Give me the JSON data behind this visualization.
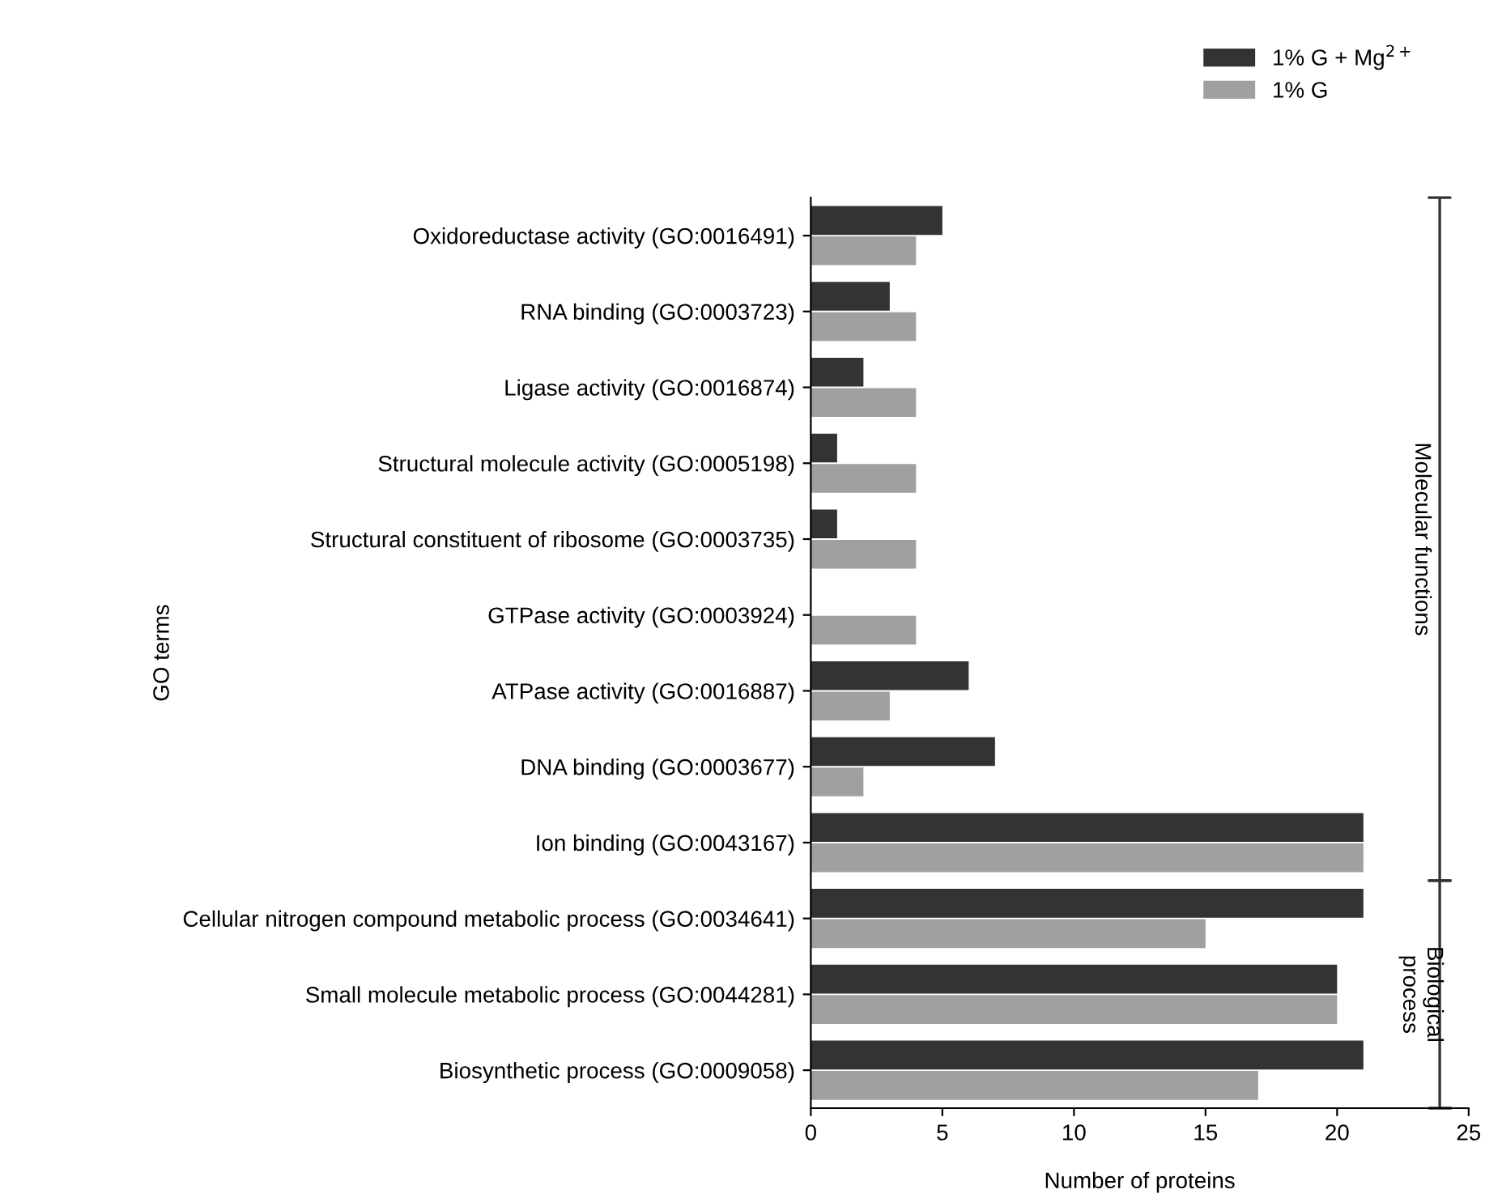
{
  "chart_data": {
    "type": "bar",
    "orientation": "horizontal",
    "categories": [
      "Oxidoreductase activity (GO:0016491)",
      "RNA binding (GO:0003723)",
      "Ligase activity (GO:0016874)",
      "Structural molecule activity (GO:0005198)",
      "Structural constituent of ribosome (GO:0003735)",
      "GTPase activity (GO:0003924)",
      "ATPase activity (GO:0016887)",
      "DNA binding (GO:0003677)",
      "Ion binding (GO:0043167)",
      "Cellular nitrogen compound metabolic process (GO:0034641)",
      "Small molecule metabolic process (GO:0044281)",
      "Biosynthetic process (GO:0009058)"
    ],
    "series": [
      {
        "name": "1% G + Mg$^{2+}$",
        "color": "#333333",
        "values": [
          5,
          3,
          2,
          1,
          1,
          0,
          6,
          7,
          21,
          21,
          20,
          21
        ]
      },
      {
        "name": "1% G",
        "color": "#a0a0a0",
        "values": [
          4,
          4,
          4,
          4,
          4,
          4,
          3,
          2,
          21,
          15,
          20,
          17
        ]
      }
    ],
    "xlabel": "Number of proteins",
    "ylabel": "GO terms",
    "xlim": [
      0,
      25
    ],
    "xticks": [
      0,
      5,
      10,
      15,
      20,
      25
    ],
    "annotations": [
      "Molecular functions",
      "Biological\nprocess"
    ],
    "grid": false,
    "legend": "top right"
  }
}
